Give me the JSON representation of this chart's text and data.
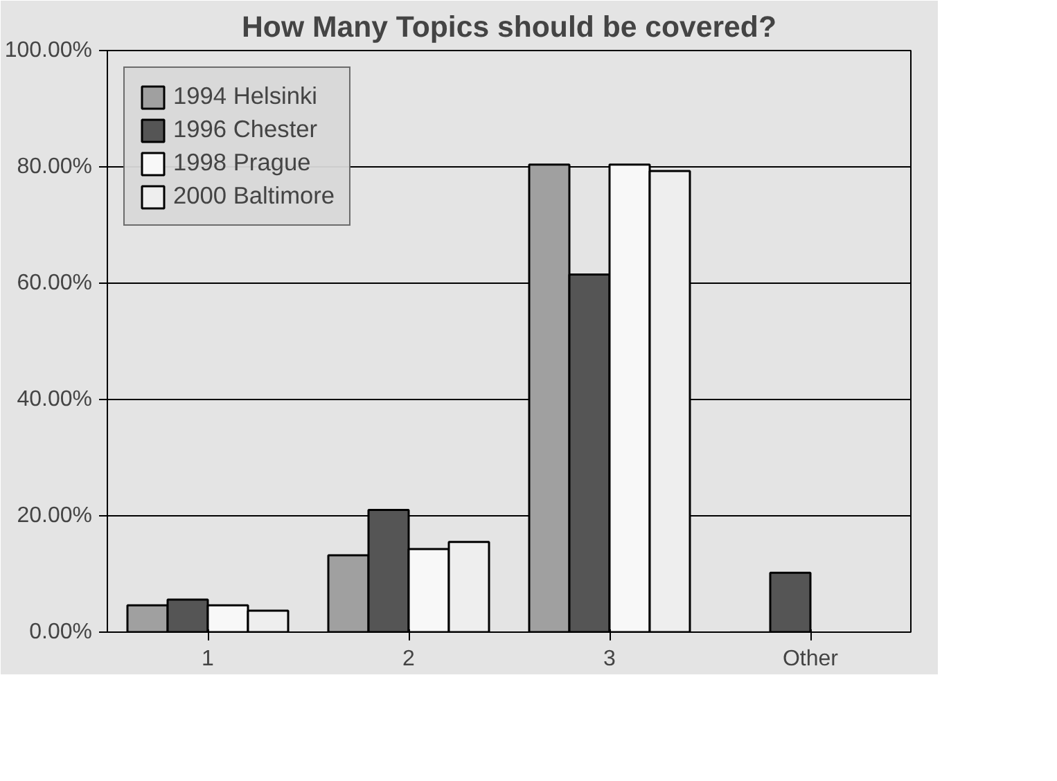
{
  "chart_data": {
    "type": "bar",
    "title": "How Many Topics should be covered?",
    "categories": [
      "1",
      "2",
      "3",
      "Other"
    ],
    "series": [
      {
        "name": "1994 Helsinki",
        "color": "#a0a0a0",
        "values": [
          4.6,
          13.2,
          80.4,
          0
        ]
      },
      {
        "name": "1996 Chester",
        "color": "#555555",
        "values": [
          5.6,
          21,
          61.5,
          10.2
        ]
      },
      {
        "name": "1998 Prague",
        "color": "#f8f8f8",
        "values": [
          4.6,
          14.3,
          80.4,
          0
        ]
      },
      {
        "name": "2000 Baltimore",
        "color": "#eeeeee",
        "values": [
          3.7,
          15.5,
          79.3,
          0
        ]
      }
    ],
    "ylim": [
      0,
      100
    ],
    "yticks": [
      {
        "value": 0,
        "label": "0.00%"
      },
      {
        "value": 20,
        "label": "20.00%"
      },
      {
        "value": 40,
        "label": "40.00%"
      },
      {
        "value": 60,
        "label": "60.00%"
      },
      {
        "value": 80,
        "label": "80.00%"
      },
      {
        "value": 100,
        "label": "100.00%"
      }
    ],
    "grid": "y",
    "legend": "top left"
  }
}
